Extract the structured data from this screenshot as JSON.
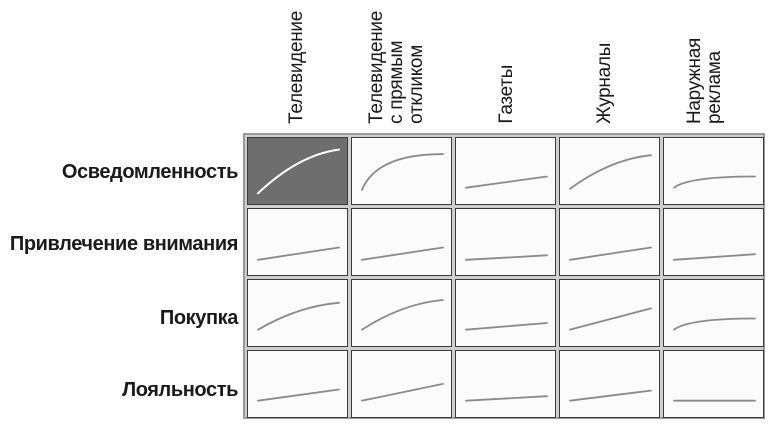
{
  "columns": [
    {
      "label": "Телевидение"
    },
    {
      "label": "Телевидение\nс прямым\nоткликом"
    },
    {
      "label": "Газеты"
    },
    {
      "label": "Журналы"
    },
    {
      "label": "Наружная\nреклама"
    }
  ],
  "rows": [
    {
      "label": "Осведомленность"
    },
    {
      "label": "Привлечение внимания"
    },
    {
      "label": "Покупка"
    },
    {
      "label": "Лояльность"
    }
  ],
  "colors": {
    "line": "#8a8a8a",
    "highlight_bg": "#6e6e6e",
    "highlight_line": "#ffffff"
  },
  "cells": [
    [
      {
        "shape": "concave",
        "start": 0.12,
        "end": 0.9,
        "highlight": true
      },
      {
        "shape": "saturating",
        "start": 0.18,
        "end": 0.82
      },
      {
        "shape": "linear",
        "start": 0.22,
        "end": 0.42
      },
      {
        "shape": "concave",
        "start": 0.2,
        "end": 0.8
      },
      {
        "shape": "saturating",
        "start": 0.22,
        "end": 0.42
      }
    ],
    [
      {
        "shape": "linear",
        "start": 0.2,
        "end": 0.42
      },
      {
        "shape": "linear",
        "start": 0.2,
        "end": 0.42
      },
      {
        "shape": "linear",
        "start": 0.2,
        "end": 0.28
      },
      {
        "shape": "linear",
        "start": 0.2,
        "end": 0.42
      },
      {
        "shape": "linear",
        "start": 0.2,
        "end": 0.3
      }
    ],
    [
      {
        "shape": "concave",
        "start": 0.22,
        "end": 0.7
      },
      {
        "shape": "concave",
        "start": 0.22,
        "end": 0.75
      },
      {
        "shape": "linear",
        "start": 0.22,
        "end": 0.34
      },
      {
        "shape": "linear",
        "start": 0.22,
        "end": 0.6
      },
      {
        "shape": "saturating",
        "start": 0.22,
        "end": 0.42
      }
    ],
    [
      {
        "shape": "linear",
        "start": 0.22,
        "end": 0.42
      },
      {
        "shape": "linear",
        "start": 0.22,
        "end": 0.52
      },
      {
        "shape": "linear",
        "start": 0.22,
        "end": 0.3
      },
      {
        "shape": "linear",
        "start": 0.22,
        "end": 0.4
      },
      {
        "shape": "linear",
        "start": 0.22,
        "end": 0.22
      }
    ]
  ]
}
